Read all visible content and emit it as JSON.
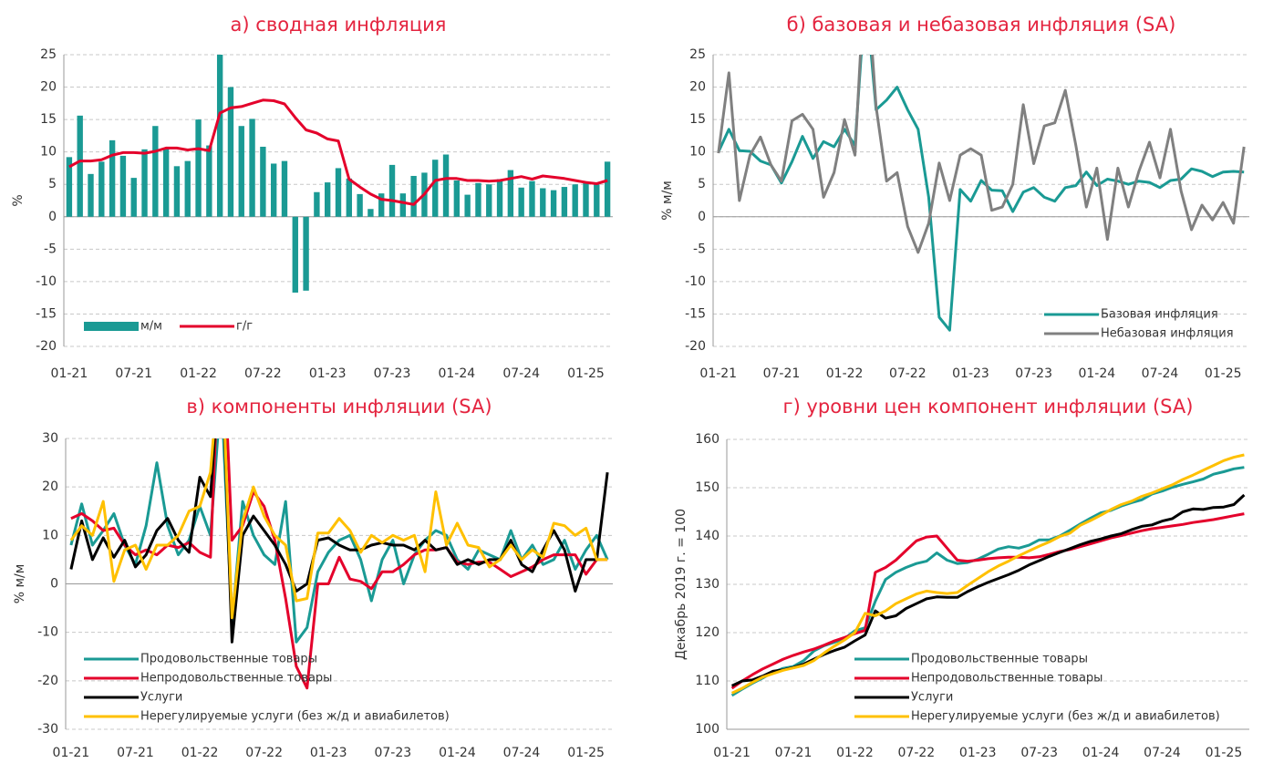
{
  "chart_data": [
    {
      "type": "combo",
      "title": "а) сводная инфляция",
      "ylabel": "%",
      "categories": [
        "01-21",
        null,
        null,
        null,
        null,
        null,
        "07-21",
        null,
        null,
        null,
        null,
        null,
        "01-22",
        null,
        null,
        null,
        null,
        null,
        "07-22",
        null,
        null,
        null,
        null,
        null,
        "01-23",
        null,
        null,
        null,
        null,
        null,
        "07-23",
        null,
        null,
        null,
        null,
        null,
        "01-24",
        null,
        null,
        null,
        null,
        null,
        "07-24",
        null,
        null,
        null,
        null,
        null,
        "01-25",
        null,
        null
      ],
      "series": [
        {
          "name": "м/м",
          "type": "bar",
          "color": "#1a9a94",
          "values": [
            9.2,
            15.6,
            6.6,
            8.5,
            11.8,
            9.4,
            6.0,
            10.4,
            14.0,
            10.6,
            7.8,
            8.6,
            15.0,
            11.0,
            25,
            20.0,
            14.0,
            15.1,
            10.8,
            8.2,
            8.6,
            -11.7,
            -11.4,
            3.8,
            5.3,
            7.5,
            5.9,
            3.5,
            1.2,
            3.6,
            8.0,
            3.6,
            6.3,
            6.8,
            8.8,
            9.6,
            5.6,
            3.4,
            5.2,
            5.0,
            5.8,
            7.2,
            4.5,
            5.5,
            4.4,
            4.1,
            4.6,
            5.0,
            5.2,
            5.0,
            8.5
          ]
        },
        {
          "name": "г/г",
          "type": "line",
          "color": "#e4002b",
          "values": [
            7.7,
            8.6,
            8.6,
            8.8,
            9.5,
            9.9,
            9.9,
            9.8,
            10.1,
            10.6,
            10.6,
            10.3,
            10.5,
            10.2,
            16.0,
            16.8,
            17.0,
            17.5,
            18.0,
            17.9,
            17.4,
            15.3,
            13.4,
            12.9,
            12.0,
            11.7,
            5.8,
            4.6,
            3.5,
            2.7,
            2.5,
            2.2,
            1.9,
            3.5,
            5.6,
            5.9,
            5.9,
            5.6,
            5.6,
            5.5,
            5.6,
            5.9,
            6.2,
            5.8,
            6.3,
            6.1,
            5.9,
            5.6,
            5.3,
            5.1,
            5.6
          ]
        }
      ],
      "ylim": [
        -20,
        25
      ],
      "yticks": [
        -20,
        -15,
        -10,
        -5,
        0,
        5,
        10,
        15,
        20,
        25
      ],
      "grid": true,
      "legend": "lower left"
    },
    {
      "type": "line",
      "title": "б) базовая и небазовая инфляция (SA)",
      "ylabel": "% м/м",
      "categories": [
        "01-21",
        null,
        null,
        null,
        null,
        null,
        "07-21",
        null,
        null,
        null,
        null,
        null,
        "01-22",
        null,
        null,
        null,
        null,
        null,
        "07-22",
        null,
        null,
        null,
        null,
        null,
        "01-23",
        null,
        null,
        null,
        null,
        null,
        "07-23",
        null,
        null,
        null,
        null,
        null,
        "01-24",
        null,
        null,
        null,
        null,
        null,
        "07-24",
        null,
        null,
        null,
        null,
        null,
        "01-25",
        null,
        null
      ],
      "series": [
        {
          "name": "Базовая инфляция",
          "color": "#1a9a94",
          "values": [
            10,
            13.5,
            10.2,
            10.1,
            8.6,
            8.0,
            5.2,
            8.5,
            12.4,
            9.0,
            11.6,
            10.8,
            13.5,
            11.0,
            35,
            16.5,
            18.0,
            20.0,
            16.5,
            13.5,
            3,
            -15.5,
            -17.5,
            4.2,
            2.4,
            5.6,
            4.1,
            4.0,
            0.8,
            3.8,
            4.5,
            3.0,
            2.4,
            4.5,
            4.8,
            6.9,
            4.8,
            5.8,
            5.5,
            5.0,
            5.5,
            5.3,
            4.5,
            5.6,
            5.8,
            7.4,
            7.0,
            6.2,
            6.9,
            7.0,
            6.9
          ]
        },
        {
          "name": "Небазовая инфляция",
          "color": "#808080",
          "values": [
            9.8,
            22.2,
            2.5,
            9.5,
            12.3,
            8.0,
            5.5,
            14.8,
            15.8,
            13.5,
            3.0,
            6.8,
            15.0,
            9.5,
            40,
            17.0,
            5.5,
            6.8,
            -1.5,
            -5.5,
            -1.0,
            8.3,
            2.5,
            9.5,
            10.5,
            9.5,
            1.0,
            1.5,
            5.0,
            17.3,
            8.2,
            14.0,
            14.5,
            19.5,
            11.0,
            1.5,
            7.5,
            -3.5,
            7.5,
            1.5,
            7.0,
            11.5,
            6.0,
            13.5,
            4.0,
            -2.0,
            1.8,
            -0.5,
            2.2,
            -1.0,
            10.8
          ]
        }
      ],
      "ylim": [
        -20,
        25
      ],
      "yticks": [
        -20,
        -15,
        -10,
        -5,
        0,
        5,
        10,
        15,
        20,
        25
      ],
      "grid": true,
      "legend": "lower right"
    },
    {
      "type": "line",
      "title": "в) компоненты инфляции (SA)",
      "ylabel": "% м/м",
      "categories": [
        "01-21",
        null,
        null,
        null,
        null,
        null,
        "07-21",
        null,
        null,
        null,
        null,
        null,
        "01-22",
        null,
        null,
        null,
        null,
        null,
        "07-22",
        null,
        null,
        null,
        null,
        null,
        "01-23",
        null,
        null,
        null,
        null,
        null,
        "07-23",
        null,
        null,
        null,
        null,
        null,
        "01-24",
        null,
        null,
        null,
        null,
        null,
        "07-24",
        null,
        null,
        null,
        null,
        null,
        "01-25",
        null,
        null
      ],
      "series": [
        {
          "name": "Продовольственные товары",
          "color": "#1a9a94",
          "values": [
            8,
            16.5,
            8,
            11,
            14.5,
            8,
            4,
            12,
            25,
            12,
            6,
            9,
            16,
            10,
            40,
            -8,
            17,
            10,
            6,
            4,
            17,
            -12,
            -9,
            2.5,
            6.5,
            9,
            10,
            5,
            -3.5,
            5,
            9,
            0,
            6,
            9,
            11,
            10,
            5,
            3,
            7,
            6,
            5,
            11,
            5,
            8,
            4,
            5,
            9,
            3,
            7,
            10,
            5
          ]
        },
        {
          "name": "Непродовольственные товары",
          "color": "#e4002b",
          "values": [
            13.5,
            14.5,
            13,
            11,
            11.5,
            8,
            6,
            7,
            6,
            8,
            7.5,
            8.5,
            6.5,
            5.5,
            60,
            9,
            12,
            19,
            16,
            9,
            -3,
            -17,
            -21.5,
            0,
            0,
            5.5,
            1,
            0.5,
            -1,
            2.5,
            2.5,
            4,
            6,
            7,
            7,
            7.5,
            4.5,
            4,
            4.5,
            4.5,
            3,
            1.5,
            2.5,
            3.5,
            5,
            6,
            6,
            6,
            2,
            5,
            5
          ]
        },
        {
          "name": "Услуги",
          "color": "#000000",
          "values": [
            3,
            13,
            5,
            9.5,
            5.5,
            9,
            3.5,
            6,
            11,
            13.5,
            9,
            6.5,
            22,
            18,
            50,
            -12,
            10,
            14,
            11,
            8,
            4,
            -1.5,
            0,
            9,
            9.5,
            8,
            7,
            7,
            8,
            8.5,
            8,
            8,
            7,
            9,
            7,
            7.5,
            4,
            5,
            4,
            5,
            5,
            9,
            4,
            2.5,
            7,
            11,
            7,
            -1.5,
            5,
            5,
            23
          ]
        },
        {
          "name": "Нерегулируемые услуги (без ж/д и авиабилетов)",
          "color": "#ffc000",
          "values": [
            9,
            12,
            10,
            17,
            0.5,
            7,
            8,
            3,
            8,
            8,
            10,
            15,
            16,
            23,
            50,
            -7,
            13,
            20,
            14,
            10,
            8,
            -3.5,
            -3,
            10.5,
            10.5,
            13.5,
            11,
            6.5,
            10,
            8.5,
            10,
            9,
            10,
            2.5,
            19,
            8,
            12.5,
            8,
            7.5,
            3.5,
            5,
            8,
            5,
            7,
            5.5,
            12.5,
            12,
            10,
            11.5,
            5,
            5
          ]
        }
      ],
      "ylim": [
        -30,
        30
      ],
      "yticks": [
        -30,
        -20,
        -10,
        0,
        10,
        20,
        30
      ],
      "grid": true,
      "legend": "lower left"
    },
    {
      "type": "line",
      "title": "г) уровни цен компонент инфляции (SA)",
      "ylabel": "Декабрь 2019 г. = 100",
      "categories": [
        "01-21",
        null,
        null,
        null,
        null,
        null,
        "07-21",
        null,
        null,
        null,
        null,
        null,
        "01-22",
        null,
        null,
        null,
        null,
        null,
        "07-22",
        null,
        null,
        null,
        null,
        null,
        "01-23",
        null,
        null,
        null,
        null,
        null,
        "07-23",
        null,
        null,
        null,
        null,
        null,
        "01-24",
        null,
        null,
        null,
        null,
        null,
        "07-24",
        null,
        null,
        null,
        null,
        null,
        "01-25",
        null,
        null
      ],
      "series": [
        {
          "name": "Продовольственные товары",
          "color": "#1a9a94",
          "values": [
            107,
            108.3,
            109.5,
            110.6,
            111.8,
            112.6,
            113.0,
            114.2,
            116.2,
            117.3,
            118.0,
            118.8,
            120.4,
            121.0,
            126.5,
            131.0,
            132.5,
            133.5,
            134.3,
            134.8,
            136.5,
            135.0,
            134.3,
            134.5,
            135.2,
            136.2,
            137.3,
            137.8,
            137.5,
            138.1,
            139.2,
            139.2,
            140.0,
            141.2,
            142.5,
            143.7,
            144.8,
            145.3,
            146.2,
            146.9,
            147.5,
            148.7,
            149.3,
            150.1,
            150.7,
            151.2,
            151.8,
            152.8,
            153.3,
            153.9,
            154.2
          ]
        },
        {
          "name": "Непродовольственные товары",
          "color": "#e4002b",
          "values": [
            108.5,
            110,
            111.3,
            112.5,
            113.5,
            114.5,
            115.3,
            116,
            116.6,
            117.4,
            118.3,
            119,
            119.8,
            120.5,
            132.5,
            133.5,
            135,
            137,
            139,
            139.8,
            140,
            137.5,
            135,
            134.8,
            135,
            135.3,
            135.5,
            135.6,
            135.6,
            135.5,
            135.7,
            136.2,
            136.8,
            137.2,
            137.8,
            138.4,
            139,
            139.6,
            140.1,
            140.6,
            141.1,
            141.5,
            141.8,
            142.1,
            142.4,
            142.8,
            143.1,
            143.4,
            143.8,
            144.2,
            144.6
          ]
        },
        {
          "name": "Услуги",
          "color": "#000000",
          "values": [
            109,
            110,
            110.2,
            111,
            112,
            112.3,
            112.8,
            113.5,
            114.5,
            115.5,
            116.3,
            117,
            118.3,
            119.5,
            124.5,
            123,
            123.5,
            125,
            126,
            127,
            127.4,
            127.3,
            127.3,
            128.5,
            129.5,
            130.4,
            131.2,
            132.0,
            132.9,
            134.0,
            134.9,
            135.8,
            136.6,
            137.4,
            138.2,
            138.9,
            139.4,
            140.0,
            140.5,
            141.3,
            142.0,
            142.3,
            143.1,
            143.6,
            145.0,
            145.6,
            145.5,
            145.9,
            146.0,
            146.5,
            148.5
          ]
        },
        {
          "name": "Нерегулируемые услуги (без ж/д и авиабилетов)",
          "color": "#ffc000",
          "values": [
            107.5,
            108.5,
            109.7,
            110.8,
            111.5,
            112.2,
            112.7,
            113.2,
            114.2,
            115.8,
            117.2,
            118.5,
            120,
            124,
            123.5,
            124.5,
            126,
            127,
            128,
            128.6,
            128.3,
            128.1,
            128.3,
            129.8,
            131.2,
            132.6,
            133.8,
            134.8,
            135.9,
            136.9,
            137.9,
            138.8,
            139.9,
            140.6,
            142.2,
            143.2,
            144.3,
            145.5,
            146.5,
            147.2,
            148.2,
            148.9,
            149.8,
            150.6,
            151.7,
            152.6,
            153.6,
            154.6,
            155.6,
            156.3,
            156.8
          ]
        }
      ],
      "ylim": [
        100,
        160
      ],
      "yticks": [
        100,
        110,
        120,
        130,
        140,
        150,
        160
      ],
      "grid": true,
      "legend": "lower right"
    }
  ]
}
